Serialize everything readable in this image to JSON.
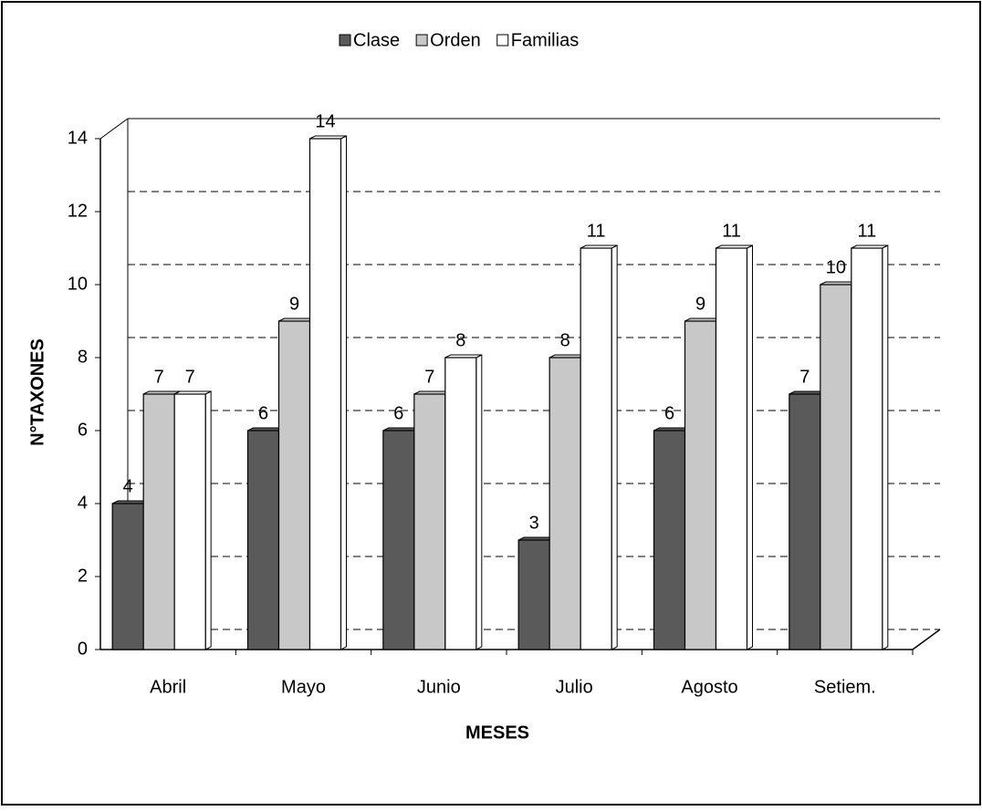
{
  "chart_data": {
    "type": "bar",
    "categories": [
      "Abril",
      "Mayo",
      "Junio",
      "Julio",
      "Agosto",
      "Setiem."
    ],
    "series": [
      {
        "name": "Clase",
        "color": "#5a5a5a",
        "values": [
          4,
          6,
          6,
          3,
          6,
          7
        ]
      },
      {
        "name": "Orden",
        "color": "#c8c8c8",
        "values": [
          7,
          9,
          7,
          8,
          9,
          10
        ]
      },
      {
        "name": "Familias",
        "color": "#ffffff",
        "values": [
          7,
          14,
          8,
          11,
          11,
          11
        ]
      }
    ],
    "ylim": [
      0,
      14
    ],
    "yticks": [
      0,
      2,
      4,
      6,
      8,
      10,
      12,
      14
    ],
    "ylabel": "N°TAXONES",
    "xlabel": "MESES",
    "grid": true,
    "legend": "top"
  }
}
